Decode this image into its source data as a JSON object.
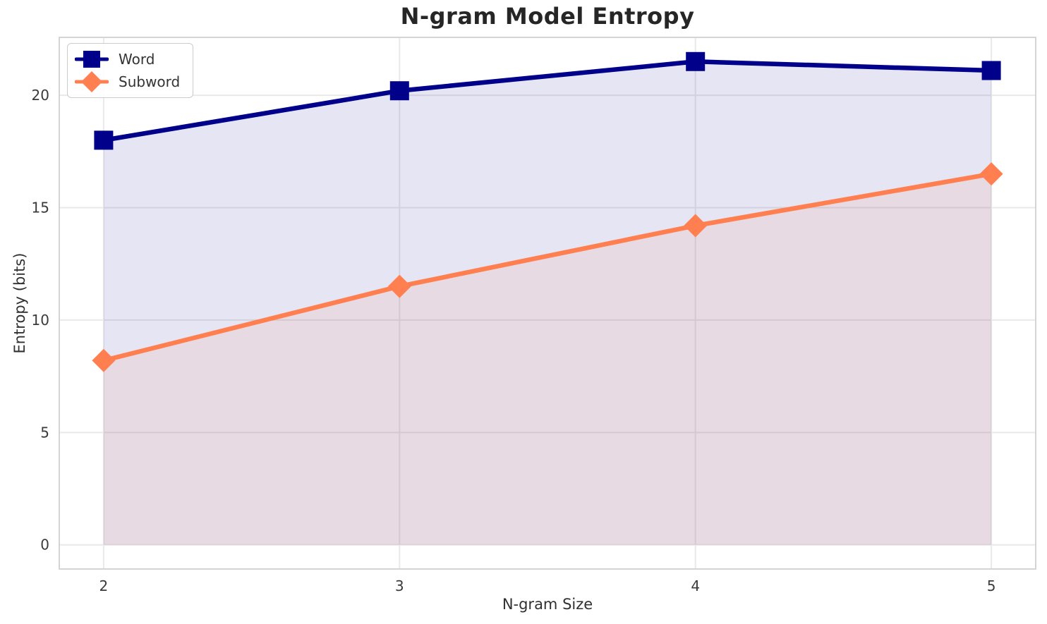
{
  "chart_data": {
    "type": "line",
    "title": "N-gram Model Entropy",
    "xlabel": "N-gram Size",
    "ylabel": "Entropy (bits)",
    "x": [
      2,
      3,
      4,
      5
    ],
    "series": [
      {
        "name": "Word",
        "values": [
          18.0,
          20.2,
          21.5,
          21.1
        ],
        "color": "#00008B",
        "marker": "square"
      },
      {
        "name": "Subword",
        "values": [
          8.2,
          11.5,
          14.2,
          16.5
        ],
        "color": "#FF7F50",
        "marker": "diamond"
      }
    ],
    "fill_baseline": 0,
    "fill_alpha": 0.1,
    "xticks": [
      "2",
      "3",
      "4",
      "5"
    ],
    "yticks": [
      "0",
      "5",
      "10",
      "15",
      "20"
    ],
    "xlim": [
      1.85,
      5.15
    ],
    "ylim": [
      -1.075,
      22.575
    ],
    "grid": true,
    "legend_position": "upper-left"
  },
  "colors": {
    "grid": "#e9e9e9",
    "spine": "#d4d4d4",
    "tick_text": "#3a3a3a",
    "title_text": "#262626",
    "background": "#ffffff",
    "legend_border": "#cccccc"
  }
}
